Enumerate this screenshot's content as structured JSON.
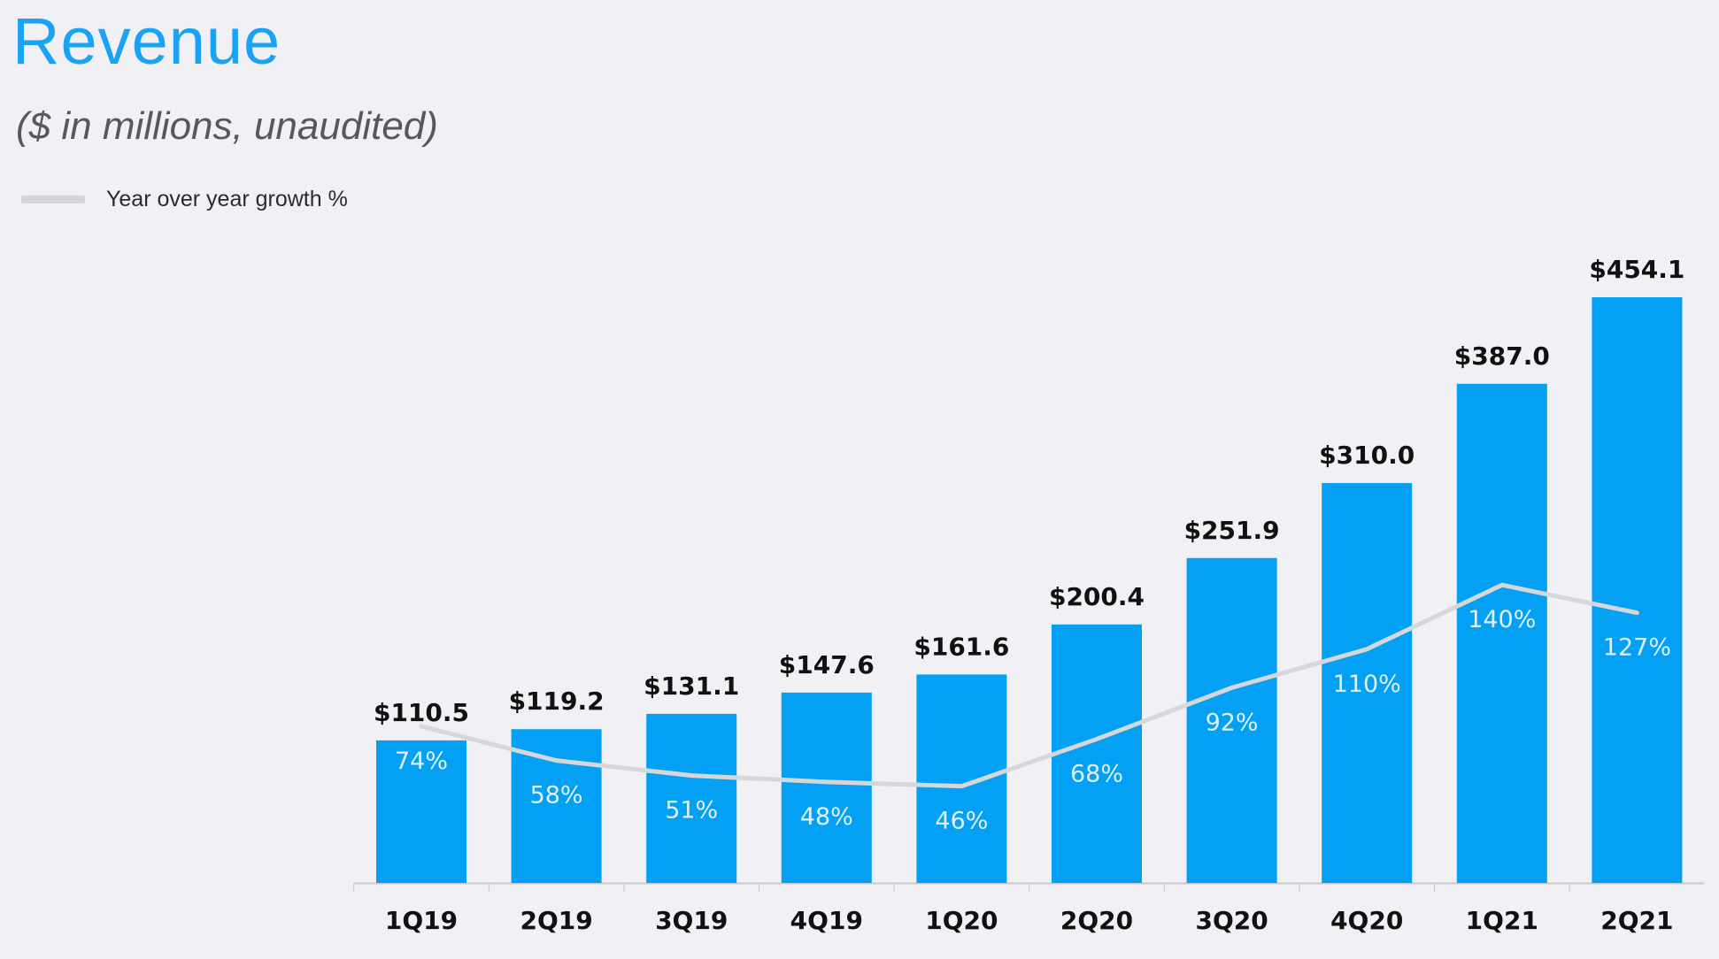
{
  "header": {
    "title": "Revenue",
    "subtitle": "($ in millions,  unaudited)"
  },
  "legend": {
    "label": "Year over year growth %"
  },
  "colors": {
    "bar": "#03a0f4",
    "line": "#d7d7d9",
    "axis": "#c8c8ca"
  },
  "chart_data": {
    "type": "bar",
    "title": "Revenue",
    "subtitle": "($ in millions,  unaudited)",
    "categories": [
      "1Q19",
      "2Q19",
      "3Q19",
      "4Q19",
      "1Q20",
      "2Q20",
      "3Q20",
      "4Q20",
      "1Q21",
      "2Q21"
    ],
    "series": [
      {
        "values": [
          110.5,
          119.2,
          131.1,
          147.6,
          161.6,
          200.4,
          251.9,
          310.0,
          387.0,
          454.1
        ],
        "labels": [
          "$110.5",
          "$119.2",
          "$131.1",
          "$147.6",
          "$161.6",
          "$200.4",
          "$251.9",
          "$310.0",
          "$387.0",
          "$454.1"
        ]
      },
      {
        "name": "Year over year growth %",
        "type": "line",
        "values": [
          74,
          58,
          51,
          48,
          46,
          68,
          92,
          110,
          140,
          127
        ],
        "labels": [
          "74%",
          "58%",
          "51%",
          "48%",
          "46%",
          "68%",
          "92%",
          "110%",
          "140%",
          "127%"
        ]
      }
    ],
    "ylim": [
      0,
      460
    ],
    "growth_ylim": [
      0,
      300
    ],
    "grid": false,
    "legend_position": "top-left"
  }
}
